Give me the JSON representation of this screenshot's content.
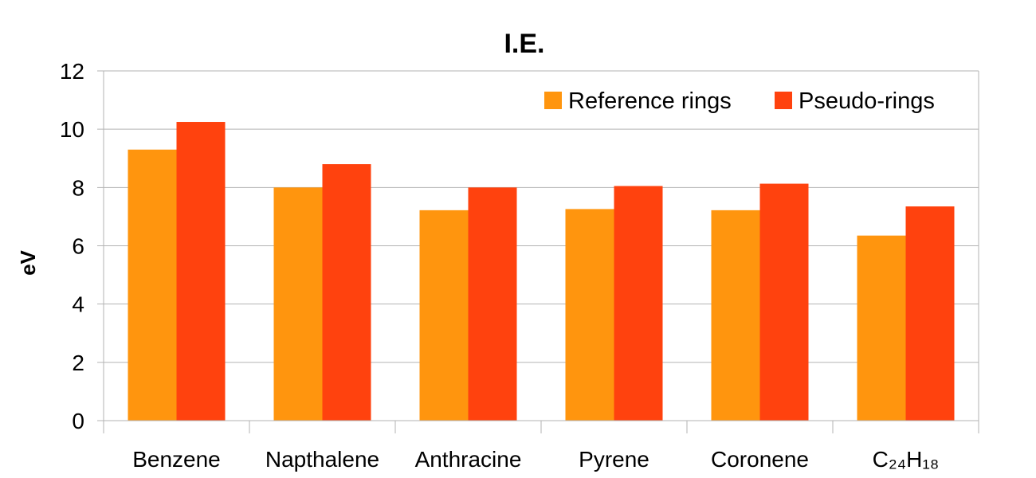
{
  "chart_data": {
    "type": "bar",
    "title": "I.E.",
    "xlabel": "",
    "ylabel": "eV",
    "ylim": [
      0,
      12
    ],
    "yticks": [
      0,
      2,
      4,
      6,
      8,
      10,
      12
    ],
    "grid": true,
    "legend_position": "top-right",
    "categories": [
      "Benzene",
      "Napthalene",
      "Anthracine",
      "Pyrene",
      "Coronene",
      "C₂₄H₁₈"
    ],
    "series": [
      {
        "name": "Reference rings",
        "color": "#ff950e",
        "values": [
          9.3,
          8.0,
          7.22,
          7.26,
          7.22,
          6.35
        ]
      },
      {
        "name": "Pseudo-rings",
        "color": "#ff420e",
        "values": [
          10.25,
          8.8,
          8.0,
          8.05,
          8.13,
          7.35
        ]
      }
    ]
  }
}
